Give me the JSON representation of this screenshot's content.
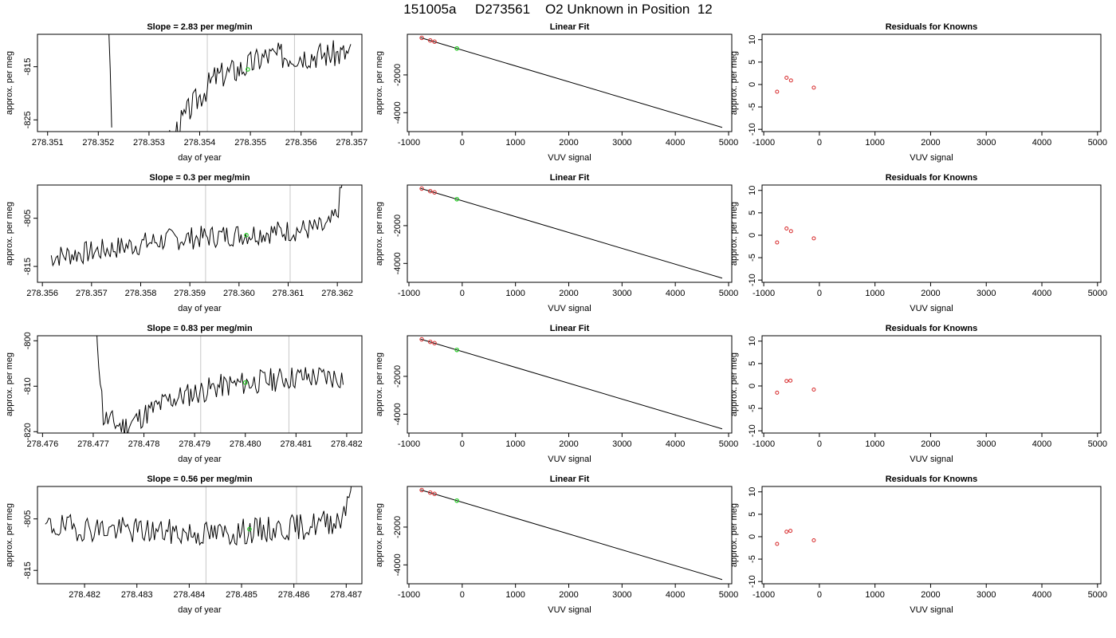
{
  "page_title": "151005a     D273561    O2 Unknown in Position  12",
  "colors": {
    "line": "#000000",
    "known": "#d62728",
    "unknown": "#22cc22",
    "vline": "#c8c8c8"
  },
  "chart_data": [
    {
      "type": "line",
      "title": "Slope =  2.83  per meg/min",
      "xlabel": "day of year",
      "ylabel": "approx. per meg",
      "xlim": [
        278.3508,
        278.3572
      ],
      "ylim": [
        -827.2,
        -808.9
      ],
      "xticks": [
        "278.351",
        "278.352",
        "278.353",
        "278.354",
        "278.355",
        "278.356",
        "278.357"
      ],
      "xticks_v": [
        278.351,
        278.352,
        278.353,
        278.354,
        278.355,
        278.356,
        278.357
      ],
      "yticks": [
        "-815",
        "-825"
      ],
      "yticks_v": [
        -815,
        -825
      ],
      "vlines": [
        278.35415,
        278.35587
      ],
      "unknown_point": [
        278.35495,
        -815.5
      ],
      "trace": {
        "x0": 278.35215,
        "x1": 278.35698,
        "n": 170,
        "seed": 3,
        "knots": [
          [
            278.35215,
            -790
          ],
          [
            278.35228,
            -830
          ],
          [
            278.3532,
            -832
          ],
          [
            278.3538,
            -823
          ],
          [
            278.3543,
            -817
          ],
          [
            278.3549,
            -815
          ],
          [
            278.3553,
            -813
          ],
          [
            278.35698,
            -812.5
          ]
        ],
        "noise": 1.6,
        "missing_until": 278.35322
      }
    },
    {
      "type": "scatter",
      "title": "Linear Fit",
      "xlabel": "VUV signal",
      "ylabel": "approx. per meg",
      "xlim": [
        -1030,
        5060
      ],
      "ylim": [
        -5000,
        150
      ],
      "xticks": [
        "-1000",
        "0",
        "1000",
        "2000",
        "3000",
        "4000",
        "5000"
      ],
      "xticks_v": [
        -1000,
        0,
        1000,
        2000,
        3000,
        4000,
        5000
      ],
      "yticks": [
        "-2000",
        "-4000"
      ],
      "yticks_v": [
        -2000,
        -4000
      ],
      "fit_line": [
        [
          -780,
          -30
        ],
        [
          4880,
          -4780
        ]
      ],
      "knowns": [
        [
          -760,
          -40
        ],
        [
          -600,
          -175
        ],
        [
          -520,
          -240
        ]
      ],
      "unknowns": [
        [
          -100,
          -600
        ]
      ]
    },
    {
      "type": "scatter",
      "title": "Residuals for Knowns",
      "xlabel": "VUV signal",
      "ylabel": "approx. per meg",
      "xlim": [
        -1030,
        5060
      ],
      "ylim": [
        -10.5,
        11.2
      ],
      "xticks": [
        "-1000",
        "0",
        "1000",
        "2000",
        "3000",
        "4000",
        "5000"
      ],
      "xticks_v": [
        -1000,
        0,
        1000,
        2000,
        3000,
        4000,
        5000
      ],
      "yticks": [
        "-10",
        "-5",
        "0",
        "5",
        "10"
      ],
      "yticks_v": [
        -10,
        -5,
        0,
        5,
        10
      ],
      "points": [
        [
          -760,
          -1.6
        ],
        [
          -590,
          1.5
        ],
        [
          -510,
          0.9
        ],
        [
          -100,
          -0.7
        ]
      ]
    },
    {
      "type": "line",
      "title": "Slope =  0.3  per meg/min",
      "xlabel": "day of year",
      "ylabel": "approx. per meg",
      "xlim": [
        278.3559,
        278.3625
      ],
      "ylim": [
        -818.3,
        -798.1
      ],
      "xticks": [
        "278.356",
        "278.357",
        "278.358",
        "278.359",
        "278.360",
        "278.361",
        "278.362"
      ],
      "xticks_v": [
        278.356,
        278.357,
        278.358,
        278.359,
        278.36,
        278.361,
        278.362
      ],
      "yticks": [
        "-805",
        "-815"
      ],
      "yticks_v": [
        -805,
        -815
      ],
      "vlines": [
        278.35932,
        278.36104
      ],
      "unknown_point": [
        278.36015,
        -808.5
      ],
      "trace": {
        "x0": 278.35618,
        "x1": 278.36215,
        "n": 185,
        "seed": 7,
        "knots": [
          [
            278.35618,
            -813
          ],
          [
            278.357,
            -812
          ],
          [
            278.3585,
            -809.5
          ],
          [
            278.3605,
            -808
          ],
          [
            278.3618,
            -807
          ],
          [
            278.362,
            -804
          ],
          [
            278.36215,
            -795
          ]
        ],
        "noise": 1.5,
        "missing_until": 0
      }
    },
    {
      "type": "scatter",
      "title": "Linear Fit",
      "xlabel": "VUV signal",
      "ylabel": "approx. per meg",
      "xlim": [
        -1030,
        5060
      ],
      "ylim": [
        -5000,
        150
      ],
      "xticks": [
        "-1000",
        "0",
        "1000",
        "2000",
        "3000",
        "4000",
        "5000"
      ],
      "xticks_v": [
        -1000,
        0,
        1000,
        2000,
        3000,
        4000,
        5000
      ],
      "yticks": [
        "-2000",
        "-4000"
      ],
      "yticks_v": [
        -2000,
        -4000
      ],
      "fit_line": [
        [
          -780,
          -30
        ],
        [
          4880,
          -4780
        ]
      ],
      "knowns": [
        [
          -760,
          -40
        ],
        [
          -600,
          -175
        ],
        [
          -520,
          -240
        ]
      ],
      "unknowns": [
        [
          -100,
          -600
        ]
      ]
    },
    {
      "type": "scatter",
      "title": "Residuals for Knowns",
      "xlabel": "VUV signal",
      "ylabel": "approx. per meg",
      "xlim": [
        -1030,
        5060
      ],
      "ylim": [
        -10.5,
        11.2
      ],
      "xticks": [
        "-1000",
        "0",
        "1000",
        "2000",
        "3000",
        "4000",
        "5000"
      ],
      "xticks_v": [
        -1000,
        0,
        1000,
        2000,
        3000,
        4000,
        5000
      ],
      "yticks": [
        "-10",
        "-5",
        "0",
        "5",
        "10"
      ],
      "yticks_v": [
        -10,
        -5,
        0,
        5,
        10
      ],
      "points": [
        [
          -760,
          -1.6
        ],
        [
          -590,
          1.5
        ],
        [
          -510,
          0.9
        ],
        [
          -100,
          -0.7
        ]
      ]
    },
    {
      "type": "line",
      "title": "Slope =  0.83  per meg/min",
      "xlabel": "day of year",
      "ylabel": "approx. per meg",
      "xlim": [
        278.4759,
        278.4823
      ],
      "ylim": [
        -820.3,
        -798.9
      ],
      "xticks": [
        "278.476",
        "278.477",
        "278.478",
        "278.479",
        "278.480",
        "278.481",
        "278.482"
      ],
      "xticks_v": [
        278.476,
        278.477,
        278.478,
        278.479,
        278.48,
        278.481,
        278.482
      ],
      "yticks": [
        "-800",
        "-810",
        "-820"
      ],
      "yticks_v": [
        -800,
        -810,
        -820
      ],
      "vlines": [
        278.47912,
        278.48086
      ],
      "unknown_point": [
        278.48,
        -809.2
      ],
      "trace": {
        "x0": 278.47705,
        "x1": 278.48193,
        "n": 165,
        "seed": 11,
        "knots": [
          [
            278.47705,
            -795
          ],
          [
            278.4772,
            -817
          ],
          [
            278.4776,
            -819
          ],
          [
            278.4785,
            -813
          ],
          [
            278.4795,
            -810
          ],
          [
            278.481,
            -808
          ],
          [
            278.48193,
            -808
          ]
        ],
        "noise": 1.7,
        "missing_until": 0
      }
    },
    {
      "type": "scatter",
      "title": "Linear Fit",
      "xlabel": "VUV signal",
      "ylabel": "approx. per meg",
      "xlim": [
        -1030,
        5060
      ],
      "ylim": [
        -5000,
        150
      ],
      "xticks": [
        "-1000",
        "0",
        "1000",
        "2000",
        "3000",
        "4000",
        "5000"
      ],
      "xticks_v": [
        -1000,
        0,
        1000,
        2000,
        3000,
        4000,
        5000
      ],
      "yticks": [
        "-2000",
        "-4000"
      ],
      "yticks_v": [
        -2000,
        -4000
      ],
      "fit_line": [
        [
          -780,
          -30
        ],
        [
          4880,
          -4780
        ]
      ],
      "knowns": [
        [
          -760,
          -40
        ],
        [
          -600,
          -175
        ],
        [
          -520,
          -240
        ]
      ],
      "unknowns": [
        [
          -100,
          -600
        ]
      ]
    },
    {
      "type": "scatter",
      "title": "Residuals for Knowns",
      "xlabel": "VUV signal",
      "ylabel": "approx. per meg",
      "xlim": [
        -1030,
        5060
      ],
      "ylim": [
        -10.5,
        11.2
      ],
      "xticks": [
        "-1000",
        "0",
        "1000",
        "2000",
        "3000",
        "4000",
        "5000"
      ],
      "xticks_v": [
        -1000,
        0,
        1000,
        2000,
        3000,
        4000,
        5000
      ],
      "yticks": [
        "-10",
        "-5",
        "0",
        "5",
        "10"
      ],
      "yticks_v": [
        -10,
        -5,
        0,
        5,
        10
      ],
      "points": [
        [
          -760,
          -1.5
        ],
        [
          -590,
          1.1
        ],
        [
          -520,
          1.2
        ],
        [
          -100,
          -0.8
        ]
      ]
    },
    {
      "type": "line",
      "title": "Slope =  0.56  per meg/min",
      "xlabel": "day of year",
      "ylabel": "approx. per meg",
      "xlim": [
        278.4811,
        278.4873
      ],
      "ylim": [
        -817.6,
        -798.7
      ],
      "xticks": [
        "278.482",
        "278.483",
        "278.484",
        "278.485",
        "278.486",
        "278.487"
      ],
      "xticks_v": [
        278.482,
        278.483,
        278.484,
        278.485,
        278.486,
        278.487
      ],
      "yticks": [
        "-805",
        "-815"
      ],
      "yticks_v": [
        -805,
        -815
      ],
      "vlines": [
        278.48432,
        278.48605
      ],
      "unknown_point": [
        278.48515,
        -807
      ],
      "trace": {
        "x0": 278.48125,
        "x1": 278.48715,
        "n": 185,
        "seed": 19,
        "knots": [
          [
            278.48125,
            -806.5
          ],
          [
            278.4825,
            -807
          ],
          [
            278.4845,
            -808
          ],
          [
            278.4862,
            -806.5
          ],
          [
            278.4869,
            -805
          ],
          [
            278.48705,
            -800
          ],
          [
            278.48715,
            -795
          ]
        ],
        "noise": 1.6,
        "missing_until": 0
      }
    },
    {
      "type": "scatter",
      "title": "Linear Fit",
      "xlabel": "VUV signal",
      "ylabel": "approx. per meg",
      "xlim": [
        -1030,
        5060
      ],
      "ylim": [
        -5000,
        150
      ],
      "xticks": [
        "-1000",
        "0",
        "1000",
        "2000",
        "3000",
        "4000",
        "5000"
      ],
      "xticks_v": [
        -1000,
        0,
        1000,
        2000,
        3000,
        4000,
        5000
      ],
      "yticks": [
        "-2000",
        "-4000"
      ],
      "yticks_v": [
        -2000,
        -4000
      ],
      "fit_line": [
        [
          -780,
          -30
        ],
        [
          4880,
          -4780
        ]
      ],
      "knowns": [
        [
          -760,
          -40
        ],
        [
          -600,
          -175
        ],
        [
          -520,
          -240
        ]
      ],
      "unknowns": [
        [
          -100,
          -600
        ]
      ]
    },
    {
      "type": "scatter",
      "title": "Residuals for Knowns",
      "xlabel": "VUV signal",
      "ylabel": "approx. per meg",
      "xlim": [
        -1030,
        5060
      ],
      "ylim": [
        -10.5,
        11.2
      ],
      "xticks": [
        "-1000",
        "0",
        "1000",
        "2000",
        "3000",
        "4000",
        "5000"
      ],
      "xticks_v": [
        -1000,
        0,
        1000,
        2000,
        3000,
        4000,
        5000
      ],
      "yticks": [
        "-10",
        "-5",
        "0",
        "5",
        "10"
      ],
      "yticks_v": [
        -10,
        -5,
        0,
        5,
        10
      ],
      "points": [
        [
          -760,
          -1.6
        ],
        [
          -590,
          1.1
        ],
        [
          -520,
          1.3
        ],
        [
          -100,
          -0.8
        ]
      ]
    }
  ]
}
